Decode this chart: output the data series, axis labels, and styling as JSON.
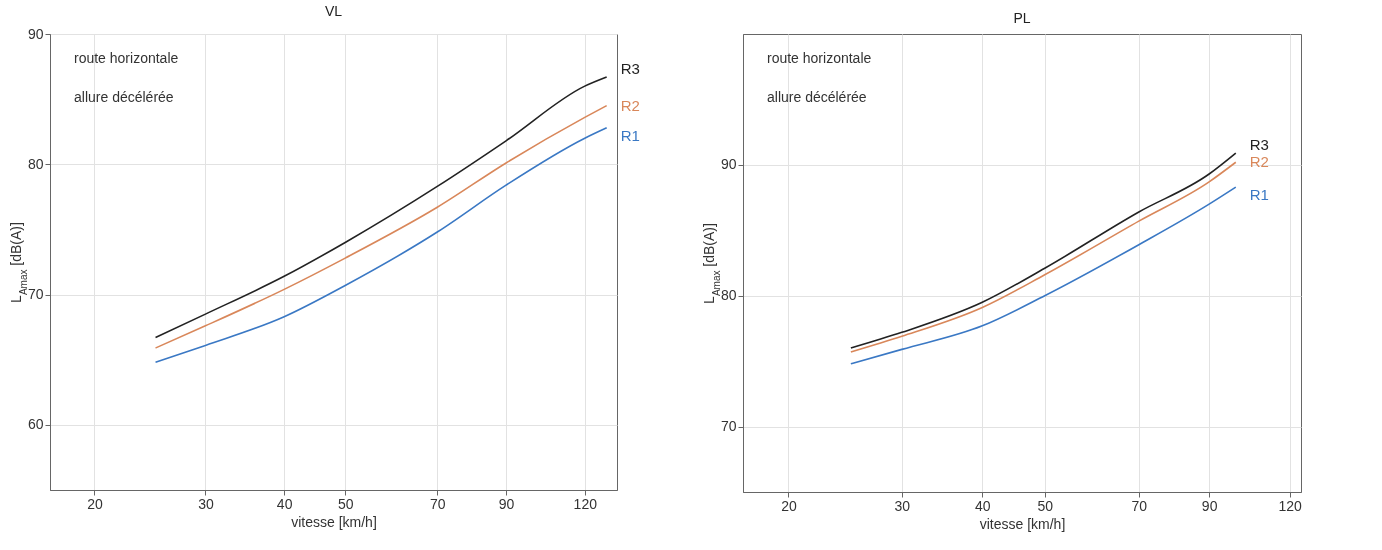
{
  "chart_data": [
    {
      "type": "line",
      "title": "VL",
      "xlabel": "vitesse   [km/h]",
      "ylabel": "L$_{Amax}$   [dB(A)]",
      "log": "x",
      "grid": true,
      "xlim": [
        17,
        135
      ],
      "xticks": [
        20,
        30,
        40,
        50,
        70,
        90,
        120
      ],
      "ylim": [
        55,
        90
      ],
      "yticks": [
        60,
        70,
        80,
        90
      ],
      "annotations": [
        "route horizontale",
        "allure décélérée"
      ],
      "x": [
        25,
        30,
        40,
        50,
        70,
        90,
        120,
        130
      ],
      "series": [
        {
          "name": "R3",
          "color": "#222222",
          "values": [
            66.7,
            68.5,
            71.4,
            74.0,
            78.3,
            81.8,
            86.0,
            86.7
          ]
        },
        {
          "name": "R2",
          "color": "#d9875a",
          "values": [
            65.9,
            67.6,
            70.4,
            72.8,
            76.7,
            80.1,
            83.6,
            84.5
          ]
        },
        {
          "name": "R1",
          "color": "#3a78c4",
          "values": [
            64.8,
            66.1,
            68.3,
            70.7,
            74.8,
            78.4,
            82.0,
            82.8
          ]
        }
      ]
    },
    {
      "type": "line",
      "title": "PL",
      "xlabel": "vitesse   [km/h]",
      "ylabel": "L$_{Amax}$   [dB(A)]",
      "log": "x",
      "grid": true,
      "xlim": [
        17,
        125
      ],
      "xticks": [
        20,
        30,
        40,
        50,
        70,
        90,
        120
      ],
      "ylim": [
        65,
        100
      ],
      "yticks": [
        70,
        80,
        90
      ],
      "annotations": [
        "route horizontale",
        "allure décélérée"
      ],
      "x": [
        25,
        30,
        40,
        50,
        70,
        90,
        99
      ],
      "series": [
        {
          "name": "R3",
          "color": "#222222",
          "values": [
            76.0,
            77.2,
            79.5,
            82.1,
            86.4,
            89.3,
            90.9
          ]
        },
        {
          "name": "R2",
          "color": "#d9875a",
          "values": [
            75.7,
            76.9,
            79.1,
            81.6,
            85.7,
            88.7,
            90.2
          ]
        },
        {
          "name": "R1",
          "color": "#3a78c4",
          "values": [
            74.8,
            75.9,
            77.7,
            80.0,
            83.9,
            87.0,
            88.3
          ]
        }
      ]
    }
  ]
}
